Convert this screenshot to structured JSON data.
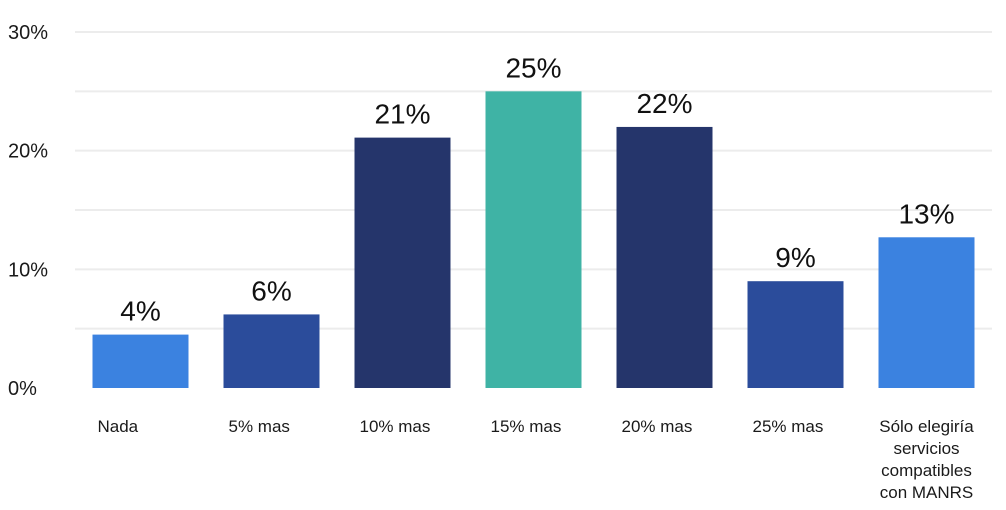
{
  "chart_data": {
    "type": "bar",
    "title": "",
    "xlabel": "",
    "ylabel": "",
    "ylim": [
      0,
      30
    ],
    "grid": true,
    "yticks": [
      {
        "value": 0,
        "label": "0%"
      },
      {
        "value": 10,
        "label": "10%"
      },
      {
        "value": 20,
        "label": "20%"
      },
      {
        "value": 30,
        "label": "30%"
      }
    ],
    "gridlines": [
      5,
      10,
      15,
      20,
      25,
      30
    ],
    "categories": [
      [
        "Nada"
      ],
      [
        "5%  mas"
      ],
      [
        "10% mas"
      ],
      [
        "15% mas"
      ],
      [
        "20% mas"
      ],
      [
        "25% mas"
      ],
      [
        "Sólo elegiría",
        "servicios",
        "compatibles",
        "con MANRS"
      ]
    ],
    "values": [
      4.5,
      6.2,
      21.1,
      25,
      22,
      9,
      12.7
    ],
    "data_labels": [
      "4%",
      "6%",
      "21%",
      "25%",
      "22%",
      "9%",
      "13%"
    ],
    "colors": [
      "#3b82e0",
      "#2b4c9b",
      "#25356b",
      "#3fb3a5",
      "#25356b",
      "#2b4c9b",
      "#3b82e0"
    ]
  }
}
